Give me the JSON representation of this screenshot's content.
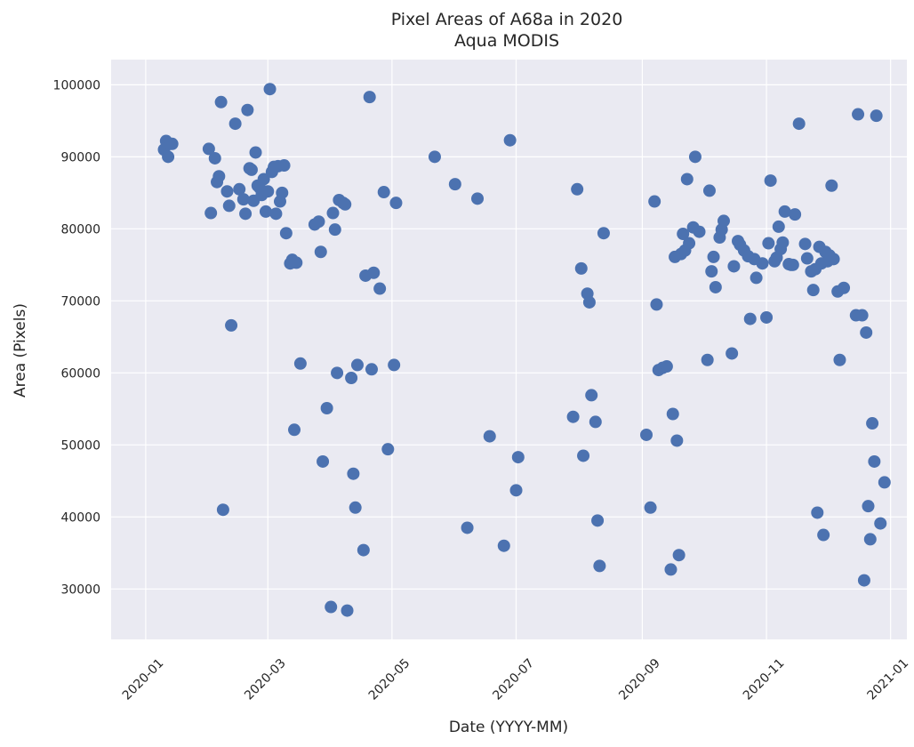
{
  "chart_data": {
    "type": "scatter",
    "title": "Pixel Areas of A68a in 2020",
    "subtitle": "Aqua MODIS",
    "xlabel": "Date (YYYY-MM)",
    "ylabel": "Area (Pixels)",
    "grid": true,
    "xlim": [
      "2019-12-15",
      "2021-01-09"
    ],
    "ylim": [
      23000,
      103500
    ],
    "x_ticks": [
      "2020-01-01",
      "2020-03-01",
      "2020-05-01",
      "2020-07-01",
      "2020-09-01",
      "2020-11-01",
      "2021-01-01"
    ],
    "x_tick_labels": [
      "2020-01",
      "2020-03",
      "2020-05",
      "2020-07",
      "2020-09",
      "2020-11",
      "2021-01"
    ],
    "y_ticks": [
      30000,
      40000,
      50000,
      60000,
      70000,
      80000,
      90000,
      100000
    ],
    "y_tick_labels": [
      "30000",
      "40000",
      "50000",
      "60000",
      "70000",
      "80000",
      "90000",
      "100000"
    ],
    "point_color": "#4c72b0",
    "background_color": "#eaeaf2",
    "points": [
      {
        "x": "2020-01-10",
        "y": 91000
      },
      {
        "x": "2020-01-11",
        "y": 92200
      },
      {
        "x": "2020-01-12",
        "y": 90000
      },
      {
        "x": "2020-01-13",
        "y": 91800
      },
      {
        "x": "2020-01-14",
        "y": 91800
      },
      {
        "x": "2020-02-01",
        "y": 91100
      },
      {
        "x": "2020-02-02",
        "y": 82200
      },
      {
        "x": "2020-02-04",
        "y": 89800
      },
      {
        "x": "2020-02-05",
        "y": 86500
      },
      {
        "x": "2020-02-06",
        "y": 87300
      },
      {
        "x": "2020-02-07",
        "y": 97600
      },
      {
        "x": "2020-02-08",
        "y": 41000
      },
      {
        "x": "2020-02-10",
        "y": 85200
      },
      {
        "x": "2020-02-11",
        "y": 83200
      },
      {
        "x": "2020-02-12",
        "y": 66600
      },
      {
        "x": "2020-02-14",
        "y": 94600
      },
      {
        "x": "2020-02-16",
        "y": 85500
      },
      {
        "x": "2020-02-18",
        "y": 84100
      },
      {
        "x": "2020-02-19",
        "y": 82100
      },
      {
        "x": "2020-02-20",
        "y": 96500
      },
      {
        "x": "2020-02-21",
        "y": 88400
      },
      {
        "x": "2020-02-22",
        "y": 88200
      },
      {
        "x": "2020-02-23",
        "y": 83900
      },
      {
        "x": "2020-02-24",
        "y": 90600
      },
      {
        "x": "2020-02-25",
        "y": 86000
      },
      {
        "x": "2020-02-26",
        "y": 85700
      },
      {
        "x": "2020-02-27",
        "y": 84700
      },
      {
        "x": "2020-02-28",
        "y": 86900
      },
      {
        "x": "2020-02-29",
        "y": 82400
      },
      {
        "x": "2020-03-01",
        "y": 85200
      },
      {
        "x": "2020-03-02",
        "y": 99400
      },
      {
        "x": "2020-03-03",
        "y": 87900
      },
      {
        "x": "2020-03-04",
        "y": 88600
      },
      {
        "x": "2020-03-05",
        "y": 82100
      },
      {
        "x": "2020-03-06",
        "y": 88700
      },
      {
        "x": "2020-03-07",
        "y": 83800
      },
      {
        "x": "2020-03-08",
        "y": 85000
      },
      {
        "x": "2020-03-09",
        "y": 88800
      },
      {
        "x": "2020-03-10",
        "y": 79400
      },
      {
        "x": "2020-03-12",
        "y": 75200
      },
      {
        "x": "2020-03-13",
        "y": 75700
      },
      {
        "x": "2020-03-14",
        "y": 52100
      },
      {
        "x": "2020-03-15",
        "y": 75300
      },
      {
        "x": "2020-03-17",
        "y": 61300
      },
      {
        "x": "2020-03-24",
        "y": 80600
      },
      {
        "x": "2020-03-26",
        "y": 81000
      },
      {
        "x": "2020-03-27",
        "y": 76800
      },
      {
        "x": "2020-03-28",
        "y": 47700
      },
      {
        "x": "2020-03-30",
        "y": 55100
      },
      {
        "x": "2020-04-01",
        "y": 27500
      },
      {
        "x": "2020-04-02",
        "y": 82200
      },
      {
        "x": "2020-04-03",
        "y": 79900
      },
      {
        "x": "2020-04-04",
        "y": 60000
      },
      {
        "x": "2020-04-05",
        "y": 84000
      },
      {
        "x": "2020-04-07",
        "y": 83600
      },
      {
        "x": "2020-04-08",
        "y": 83400
      },
      {
        "x": "2020-04-09",
        "y": 27000
      },
      {
        "x": "2020-04-11",
        "y": 59300
      },
      {
        "x": "2020-04-12",
        "y": 46000
      },
      {
        "x": "2020-04-13",
        "y": 41300
      },
      {
        "x": "2020-04-14",
        "y": 61100
      },
      {
        "x": "2020-04-17",
        "y": 35400
      },
      {
        "x": "2020-04-18",
        "y": 73500
      },
      {
        "x": "2020-04-20",
        "y": 98300
      },
      {
        "x": "2020-04-21",
        "y": 60500
      },
      {
        "x": "2020-04-22",
        "y": 73900
      },
      {
        "x": "2020-04-25",
        "y": 71700
      },
      {
        "x": "2020-04-27",
        "y": 85100
      },
      {
        "x": "2020-04-29",
        "y": 49400
      },
      {
        "x": "2020-05-02",
        "y": 61100
      },
      {
        "x": "2020-05-03",
        "y": 83600
      },
      {
        "x": "2020-05-22",
        "y": 90000
      },
      {
        "x": "2020-06-01",
        "y": 86200
      },
      {
        "x": "2020-06-07",
        "y": 38500
      },
      {
        "x": "2020-06-12",
        "y": 84200
      },
      {
        "x": "2020-06-18",
        "y": 51200
      },
      {
        "x": "2020-06-25",
        "y": 36000
      },
      {
        "x": "2020-06-28",
        "y": 92300
      },
      {
        "x": "2020-07-01",
        "y": 43700
      },
      {
        "x": "2020-07-02",
        "y": 48300
      },
      {
        "x": "2020-07-29",
        "y": 53900
      },
      {
        "x": "2020-07-31",
        "y": 85500
      },
      {
        "x": "2020-08-02",
        "y": 74500
      },
      {
        "x": "2020-08-03",
        "y": 48500
      },
      {
        "x": "2020-08-05",
        "y": 71000
      },
      {
        "x": "2020-08-06",
        "y": 69800
      },
      {
        "x": "2020-08-07",
        "y": 56900
      },
      {
        "x": "2020-08-09",
        "y": 53200
      },
      {
        "x": "2020-08-10",
        "y": 39500
      },
      {
        "x": "2020-08-11",
        "y": 33200
      },
      {
        "x": "2020-08-13",
        "y": 79400
      },
      {
        "x": "2020-09-03",
        "y": 51400
      },
      {
        "x": "2020-09-05",
        "y": 41300
      },
      {
        "x": "2020-09-07",
        "y": 83800
      },
      {
        "x": "2020-09-08",
        "y": 69500
      },
      {
        "x": "2020-09-09",
        "y": 60400
      },
      {
        "x": "2020-09-11",
        "y": 60700
      },
      {
        "x": "2020-09-13",
        "y": 60900
      },
      {
        "x": "2020-09-15",
        "y": 32700
      },
      {
        "x": "2020-09-16",
        "y": 54300
      },
      {
        "x": "2020-09-17",
        "y": 76100
      },
      {
        "x": "2020-09-18",
        "y": 50600
      },
      {
        "x": "2020-09-19",
        "y": 34700
      },
      {
        "x": "2020-09-20",
        "y": 76500
      },
      {
        "x": "2020-09-21",
        "y": 79300
      },
      {
        "x": "2020-09-22",
        "y": 77000
      },
      {
        "x": "2020-09-23",
        "y": 86900
      },
      {
        "x": "2020-09-24",
        "y": 78000
      },
      {
        "x": "2020-09-26",
        "y": 80200
      },
      {
        "x": "2020-09-27",
        "y": 90000
      },
      {
        "x": "2020-09-29",
        "y": 79600
      },
      {
        "x": "2020-10-03",
        "y": 61800
      },
      {
        "x": "2020-10-04",
        "y": 85300
      },
      {
        "x": "2020-10-05",
        "y": 74100
      },
      {
        "x": "2020-10-06",
        "y": 76100
      },
      {
        "x": "2020-10-07",
        "y": 71900
      },
      {
        "x": "2020-10-09",
        "y": 78800
      },
      {
        "x": "2020-10-10",
        "y": 79900
      },
      {
        "x": "2020-10-11",
        "y": 81100
      },
      {
        "x": "2020-10-15",
        "y": 62700
      },
      {
        "x": "2020-10-16",
        "y": 74800
      },
      {
        "x": "2020-10-18",
        "y": 78300
      },
      {
        "x": "2020-10-19",
        "y": 77800
      },
      {
        "x": "2020-10-21",
        "y": 77000
      },
      {
        "x": "2020-10-23",
        "y": 76200
      },
      {
        "x": "2020-10-24",
        "y": 67500
      },
      {
        "x": "2020-10-26",
        "y": 75800
      },
      {
        "x": "2020-10-27",
        "y": 73200
      },
      {
        "x": "2020-10-30",
        "y": 75200
      },
      {
        "x": "2020-11-01",
        "y": 67700
      },
      {
        "x": "2020-11-02",
        "y": 78000
      },
      {
        "x": "2020-11-03",
        "y": 86700
      },
      {
        "x": "2020-11-05",
        "y": 75500
      },
      {
        "x": "2020-11-06",
        "y": 76000
      },
      {
        "x": "2020-11-07",
        "y": 80300
      },
      {
        "x": "2020-11-08",
        "y": 77200
      },
      {
        "x": "2020-11-09",
        "y": 78100
      },
      {
        "x": "2020-11-10",
        "y": 82400
      },
      {
        "x": "2020-11-12",
        "y": 75100
      },
      {
        "x": "2020-11-13",
        "y": 75000
      },
      {
        "x": "2020-11-14",
        "y": 75000
      },
      {
        "x": "2020-11-15",
        "y": 82000
      },
      {
        "x": "2020-11-17",
        "y": 94600
      },
      {
        "x": "2020-11-20",
        "y": 77900
      },
      {
        "x": "2020-11-21",
        "y": 75900
      },
      {
        "x": "2020-11-23",
        "y": 74100
      },
      {
        "x": "2020-11-24",
        "y": 71500
      },
      {
        "x": "2020-11-25",
        "y": 74400
      },
      {
        "x": "2020-11-26",
        "y": 40600
      },
      {
        "x": "2020-11-27",
        "y": 77500
      },
      {
        "x": "2020-11-28",
        "y": 75200
      },
      {
        "x": "2020-11-29",
        "y": 37500
      },
      {
        "x": "2020-11-30",
        "y": 76800
      },
      {
        "x": "2020-12-01",
        "y": 75500
      },
      {
        "x": "2020-12-02",
        "y": 76300
      },
      {
        "x": "2020-12-03",
        "y": 86000
      },
      {
        "x": "2020-12-04",
        "y": 75800
      },
      {
        "x": "2020-12-06",
        "y": 71300
      },
      {
        "x": "2020-12-07",
        "y": 61800
      },
      {
        "x": "2020-12-09",
        "y": 71800
      },
      {
        "x": "2020-12-15",
        "y": 68000
      },
      {
        "x": "2020-12-16",
        "y": 95900
      },
      {
        "x": "2020-12-18",
        "y": 68000
      },
      {
        "x": "2020-12-19",
        "y": 31200
      },
      {
        "x": "2020-12-20",
        "y": 65600
      },
      {
        "x": "2020-12-21",
        "y": 41500
      },
      {
        "x": "2020-12-22",
        "y": 36900
      },
      {
        "x": "2020-12-23",
        "y": 53000
      },
      {
        "x": "2020-12-24",
        "y": 47700
      },
      {
        "x": "2020-12-25",
        "y": 95700
      },
      {
        "x": "2020-12-27",
        "y": 39100
      },
      {
        "x": "2020-12-29",
        "y": 44800
      }
    ]
  }
}
